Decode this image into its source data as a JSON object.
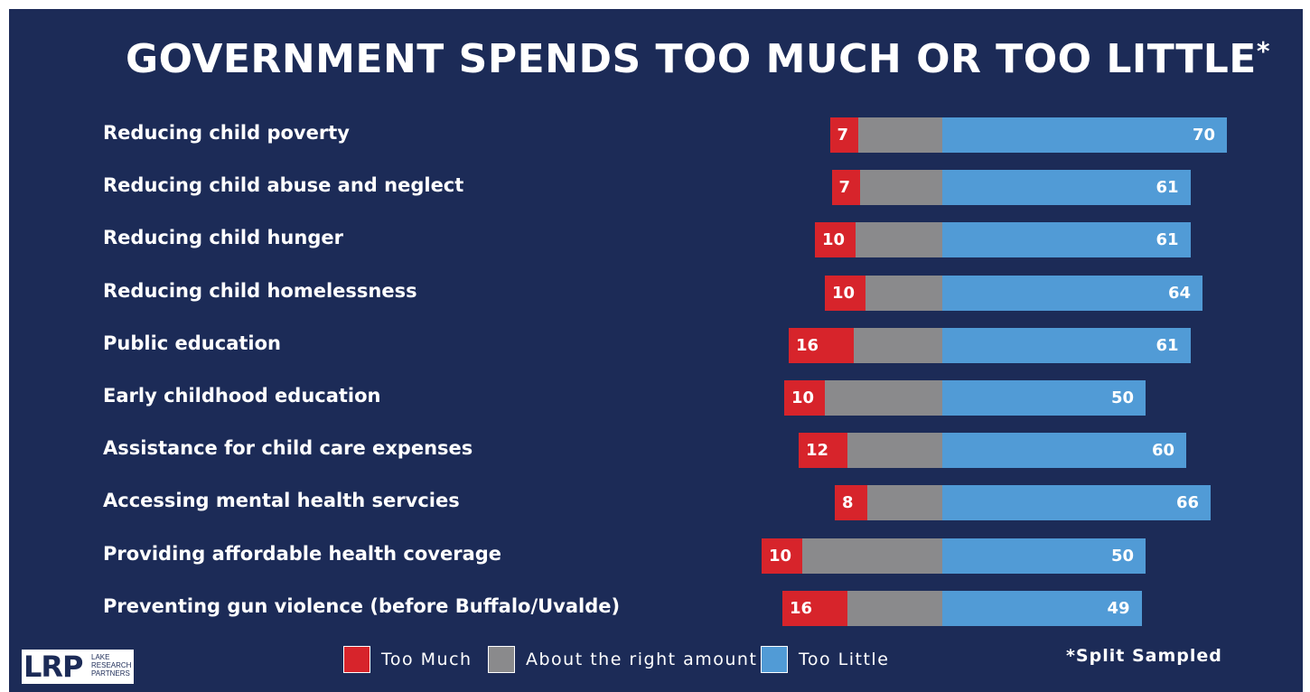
{
  "title_main": "GOVERNMENT SPENDS TOO MUCH OR TOO LITTLE",
  "title_asterisk": "*",
  "footnote": "*Split Sampled",
  "logo": {
    "mark": "LRP",
    "sub_line1": "LAKE",
    "sub_line2": "RESEARCH",
    "sub_line3": "PARTNERS"
  },
  "colors": {
    "background": "#1c2b57",
    "too_much": "#d7242b",
    "about_right": "#8a8a8c",
    "too_little": "#519bd6"
  },
  "chart_data": {
    "type": "bar",
    "orientation": "horizontal",
    "stacked": true,
    "diverging": true,
    "categories": [
      "Reducing child poverty",
      "Reducing child abuse and neglect",
      "Reducing child hunger",
      "Reducing child homelessness",
      "Public education",
      "Early childhood education",
      "Assistance for child care expenses",
      "Accessing mental health servcies",
      "Providing affordable health coverage",
      "Preventing gun violence (before Buffalo/Uvalde)"
    ],
    "series": [
      {
        "name": "Too Much",
        "values": [
          7,
          7,
          10,
          10,
          16,
          10,
          12,
          8,
          10,
          16
        ]
      },
      {
        "name": "About the right amount",
        "values": [
          20,
          20,
          21,
          19,
          21,
          28,
          23,
          18,
          34,
          23
        ]
      },
      {
        "name": "Too Little",
        "values": [
          70,
          61,
          61,
          64,
          61,
          50,
          60,
          66,
          50,
          49
        ]
      }
    ],
    "legend_position": "bottom",
    "grid": false
  }
}
